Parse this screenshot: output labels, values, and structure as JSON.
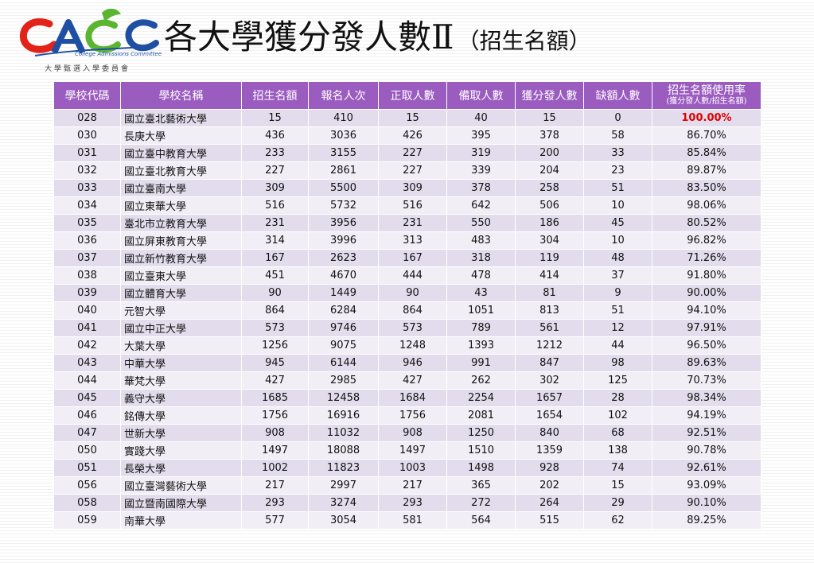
{
  "header": {
    "logo_small_text": "大學甄選入學委員會",
    "logo_small_en": "College Admissions Committee",
    "title": "各大學獲分發人數Ⅱ",
    "subtitle": "（招生名額）"
  },
  "table": {
    "columns": [
      "學校代碼",
      "學校名稱",
      "招生名額",
      "報名人次",
      "正取人數",
      "備取人數",
      "獲分發人數",
      "缺額人數"
    ],
    "rate_column": {
      "main": "招生名額使用率",
      "sub": "(獲分發人數/招生名額)"
    },
    "rows": [
      {
        "code": "028",
        "name": "國立臺北藝術大學",
        "quota": "15",
        "applicants": "410",
        "admitted": "15",
        "waitlist": "40",
        "assigned": "15",
        "vacancy": "0",
        "rate": "100.00%"
      },
      {
        "code": "030",
        "name": "長庚大學",
        "quota": "436",
        "applicants": "3036",
        "admitted": "426",
        "waitlist": "395",
        "assigned": "378",
        "vacancy": "58",
        "rate": "86.70%"
      },
      {
        "code": "031",
        "name": "國立臺中教育大學",
        "quota": "233",
        "applicants": "3155",
        "admitted": "227",
        "waitlist": "319",
        "assigned": "200",
        "vacancy": "33",
        "rate": "85.84%"
      },
      {
        "code": "032",
        "name": "國立臺北教育大學",
        "quota": "227",
        "applicants": "2861",
        "admitted": "227",
        "waitlist": "339",
        "assigned": "204",
        "vacancy": "23",
        "rate": "89.87%"
      },
      {
        "code": "033",
        "name": "國立臺南大學",
        "quota": "309",
        "applicants": "5500",
        "admitted": "309",
        "waitlist": "378",
        "assigned": "258",
        "vacancy": "51",
        "rate": "83.50%"
      },
      {
        "code": "034",
        "name": "國立東華大學",
        "quota": "516",
        "applicants": "5732",
        "admitted": "516",
        "waitlist": "642",
        "assigned": "506",
        "vacancy": "10",
        "rate": "98.06%"
      },
      {
        "code": "035",
        "name": "臺北市立教育大學",
        "quota": "231",
        "applicants": "3956",
        "admitted": "231",
        "waitlist": "550",
        "assigned": "186",
        "vacancy": "45",
        "rate": "80.52%"
      },
      {
        "code": "036",
        "name": "國立屏東教育大學",
        "quota": "314",
        "applicants": "3996",
        "admitted": "313",
        "waitlist": "483",
        "assigned": "304",
        "vacancy": "10",
        "rate": "96.82%"
      },
      {
        "code": "037",
        "name": "國立新竹教育大學",
        "quota": "167",
        "applicants": "2623",
        "admitted": "167",
        "waitlist": "318",
        "assigned": "119",
        "vacancy": "48",
        "rate": "71.26%"
      },
      {
        "code": "038",
        "name": "國立臺東大學",
        "quota": "451",
        "applicants": "4670",
        "admitted": "444",
        "waitlist": "478",
        "assigned": "414",
        "vacancy": "37",
        "rate": "91.80%"
      },
      {
        "code": "039",
        "name": "國立體育大學",
        "quota": "90",
        "applicants": "1449",
        "admitted": "90",
        "waitlist": "43",
        "assigned": "81",
        "vacancy": "9",
        "rate": "90.00%"
      },
      {
        "code": "040",
        "name": "元智大學",
        "quota": "864",
        "applicants": "6284",
        "admitted": "864",
        "waitlist": "1051",
        "assigned": "813",
        "vacancy": "51",
        "rate": "94.10%"
      },
      {
        "code": "041",
        "name": "國立中正大學",
        "quota": "573",
        "applicants": "9746",
        "admitted": "573",
        "waitlist": "789",
        "assigned": "561",
        "vacancy": "12",
        "rate": "97.91%"
      },
      {
        "code": "042",
        "name": "大葉大學",
        "quota": "1256",
        "applicants": "9075",
        "admitted": "1248",
        "waitlist": "1393",
        "assigned": "1212",
        "vacancy": "44",
        "rate": "96.50%"
      },
      {
        "code": "043",
        "name": "中華大學",
        "quota": "945",
        "applicants": "6144",
        "admitted": "946",
        "waitlist": "991",
        "assigned": "847",
        "vacancy": "98",
        "rate": "89.63%"
      },
      {
        "code": "044",
        "name": "華梵大學",
        "quota": "427",
        "applicants": "2985",
        "admitted": "427",
        "waitlist": "262",
        "assigned": "302",
        "vacancy": "125",
        "rate": "70.73%"
      },
      {
        "code": "045",
        "name": "義守大學",
        "quota": "1685",
        "applicants": "12458",
        "admitted": "1684",
        "waitlist": "2254",
        "assigned": "1657",
        "vacancy": "28",
        "rate": "98.34%"
      },
      {
        "code": "046",
        "name": "銘傳大學",
        "quota": "1756",
        "applicants": "16916",
        "admitted": "1756",
        "waitlist": "2081",
        "assigned": "1654",
        "vacancy": "102",
        "rate": "94.19%"
      },
      {
        "code": "047",
        "name": "世新大學",
        "quota": "908",
        "applicants": "11032",
        "admitted": "908",
        "waitlist": "1250",
        "assigned": "840",
        "vacancy": "68",
        "rate": "92.51%"
      },
      {
        "code": "050",
        "name": "實踐大學",
        "quota": "1497",
        "applicants": "18088",
        "admitted": "1497",
        "waitlist": "1510",
        "assigned": "1359",
        "vacancy": "138",
        "rate": "90.78%"
      },
      {
        "code": "051",
        "name": "長榮大學",
        "quota": "1002",
        "applicants": "11823",
        "admitted": "1003",
        "waitlist": "1498",
        "assigned": "928",
        "vacancy": "74",
        "rate": "92.61%"
      },
      {
        "code": "056",
        "name": "國立臺灣藝術大學",
        "quota": "217",
        "applicants": "2997",
        "admitted": "217",
        "waitlist": "365",
        "assigned": "202",
        "vacancy": "15",
        "rate": "93.09%"
      },
      {
        "code": "058",
        "name": "國立暨南國際大學",
        "quota": "293",
        "applicants": "3274",
        "admitted": "293",
        "waitlist": "272",
        "assigned": "264",
        "vacancy": "29",
        "rate": "90.10%"
      },
      {
        "code": "059",
        "name": "南華大學",
        "quota": "577",
        "applicants": "3054",
        "admitted": "581",
        "waitlist": "564",
        "assigned": "515",
        "vacancy": "62",
        "rate": "89.25%"
      }
    ]
  },
  "colors": {
    "header_bg": "#9b5cc0",
    "row_odd": "#e3dcec",
    "row_even": "#f2eef6",
    "highlight_text": "#e00000"
  }
}
